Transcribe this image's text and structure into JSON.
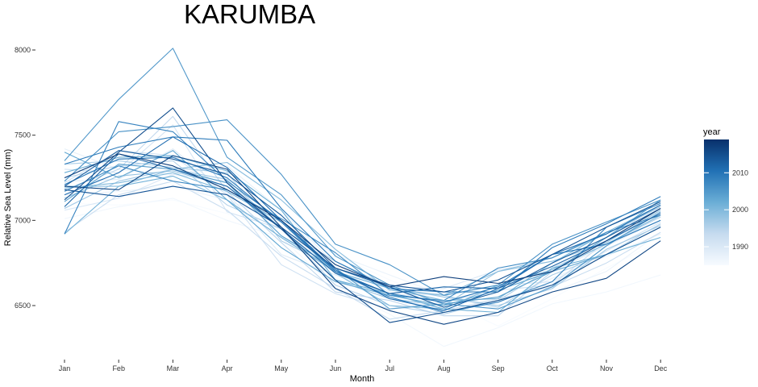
{
  "chart_data": {
    "type": "line",
    "title": "KARUMBA",
    "xlabel": "Month",
    "ylabel": "Relative Sea Level (mm)",
    "categories": [
      "Jan",
      "Feb",
      "Mar",
      "Apr",
      "May",
      "Jun",
      "Jul",
      "Aug",
      "Sep",
      "Oct",
      "Nov",
      "Dec"
    ],
    "yticks": [
      6500,
      7000,
      7500,
      8000
    ],
    "ylim": [
      6220,
      8080
    ],
    "grid": false,
    "legend": {
      "title": "year",
      "placement": "right",
      "type": "continuous",
      "range": [
        1985,
        2019
      ],
      "ticks": [
        1990,
        2000,
        2010
      ],
      "colors": [
        "#f7fbff",
        "#c6dbef",
        "#6baed6",
        "#2171b5",
        "#08306b"
      ]
    },
    "series": [
      {
        "year": 1985,
        "values": [
          7100,
          7090,
          7120,
          7040,
          6930,
          6800,
          6650,
          6530,
          6380,
          6540,
          6720,
          6880
        ]
      },
      {
        "year": 1986,
        "values": [
          7010,
          7080,
          7130,
          7000,
          6900,
          6600,
          6450,
          6260,
          6370,
          6510,
          6580,
          6680
        ]
      },
      {
        "year": 1987,
        "values": [
          7150,
          7170,
          7200,
          7120,
          6990,
          6800,
          6680,
          6560,
          6480,
          6580,
          6700,
          6930
        ]
      },
      {
        "year": 1988,
        "values": [
          7420,
          7300,
          7270,
          7320,
          7060,
          6740,
          6580,
          6520,
          6520,
          6660,
          6790,
          6920
        ]
      },
      {
        "year": 1989,
        "values": [
          7230,
          7240,
          7420,
          7160,
          6800,
          6680,
          6560,
          6570,
          6610,
          6700,
          6850,
          7000
        ]
      },
      {
        "year": 1990,
        "values": [
          7060,
          7130,
          7270,
          7230,
          6910,
          6690,
          6610,
          6600,
          6710,
          6760,
          6880,
          7020
        ]
      },
      {
        "year": 1991,
        "values": [
          7300,
          7280,
          7560,
          7050,
          6950,
          6700,
          6540,
          6480,
          6620,
          6640,
          6820,
          6990
        ]
      },
      {
        "year": 1992,
        "values": [
          7220,
          7410,
          7380,
          7150,
          6740,
          6570,
          6480,
          6520,
          6590,
          6620,
          6880,
          7050
        ]
      },
      {
        "year": 1993,
        "values": [
          6930,
          7150,
          7230,
          7060,
          6790,
          6600,
          6420,
          6470,
          6540,
          6610,
          6750,
          6930
        ]
      },
      {
        "year": 1994,
        "values": [
          7180,
          7300,
          7610,
          7170,
          6870,
          6580,
          6530,
          6440,
          6440,
          6700,
          6900,
          7090
        ]
      },
      {
        "year": 1995,
        "values": [
          7250,
          7320,
          7350,
          7090,
          6950,
          6620,
          6500,
          6450,
          6530,
          6720,
          6860,
          7020
        ]
      },
      {
        "year": 1996,
        "values": [
          7330,
          7350,
          7310,
          7280,
          6880,
          6720,
          6600,
          6560,
          6490,
          6680,
          6800,
          6980
        ]
      },
      {
        "year": 1997,
        "values": [
          7070,
          7230,
          7300,
          7240,
          6950,
          6760,
          6610,
          6550,
          6500,
          6600,
          6830,
          6970
        ]
      },
      {
        "year": 1998,
        "values": [
          7130,
          7260,
          7290,
          7200,
          6960,
          6650,
          6540,
          6500,
          6700,
          6780,
          6920,
          7080
        ]
      },
      {
        "year": 1999,
        "values": [
          7200,
          7200,
          7300,
          7340,
          7120,
          6830,
          6590,
          6560,
          6700,
          6760,
          6870,
          7060
        ]
      },
      {
        "year": 2000,
        "values": [
          7190,
          7220,
          7280,
          7170,
          6990,
          6690,
          6500,
          6480,
          6620,
          6710,
          6860,
          7030
        ]
      },
      {
        "year": 2001,
        "values": [
          6920,
          7200,
          7260,
          7120,
          6900,
          6700,
          6600,
          6530,
          6540,
          6750,
          6930,
          7090
        ]
      },
      {
        "year": 2002,
        "values": [
          7280,
          7370,
          7380,
          7290,
          7060,
          6650,
          6570,
          6480,
          6460,
          6720,
          6800,
          6900
        ]
      },
      {
        "year": 2003,
        "values": [
          7400,
          7250,
          7410,
          7120,
          6840,
          6640,
          6560,
          6500,
          6590,
          6700,
          6800,
          6960
        ]
      },
      {
        "year": 2004,
        "values": [
          7110,
          7330,
          7300,
          7220,
          6910,
          6720,
          6480,
          6510,
          6550,
          6700,
          6900,
          7120
        ]
      },
      {
        "year": 2005,
        "values": [
          7350,
          7710,
          8010,
          7370,
          7150,
          6790,
          6620,
          6510,
          6480,
          6610,
          6850,
          7050
        ]
      },
      {
        "year": 2006,
        "values": [
          7230,
          7520,
          7550,
          7590,
          7270,
          6860,
          6740,
          6560,
          6620,
          6860,
          6990,
          7120
        ]
      },
      {
        "year": 2007,
        "values": [
          7170,
          7320,
          7230,
          7180,
          7010,
          6810,
          6560,
          6530,
          6720,
          6780,
          6930,
          7030
        ]
      },
      {
        "year": 2008,
        "values": [
          6920,
          7580,
          7520,
          7230,
          7000,
          6700,
          6550,
          6460,
          6520,
          6640,
          6960,
          7100
        ]
      },
      {
        "year": 2009,
        "values": [
          7330,
          7430,
          7490,
          7470,
          7070,
          6760,
          6600,
          6580,
          6580,
          6840,
          6980,
          7140
        ]
      },
      {
        "year": 2010,
        "values": [
          7210,
          7360,
          7370,
          7250,
          6990,
          6700,
          6570,
          6520,
          6610,
          6800,
          6860,
          7000
        ]
      },
      {
        "year": 2011,
        "values": [
          7150,
          7280,
          7490,
          7310,
          7000,
          6710,
          6540,
          6470,
          6600,
          6800,
          6920,
          7090
        ]
      },
      {
        "year": 2012,
        "values": [
          7080,
          7390,
          7300,
          7200,
          6950,
          6690,
          6570,
          6610,
          6600,
          6730,
          6880,
          7040
        ]
      },
      {
        "year": 2013,
        "values": [
          7200,
          7410,
          7360,
          7270,
          7030,
          6720,
          6610,
          6490,
          6580,
          6750,
          6900,
          7070
        ]
      },
      {
        "year": 2014,
        "values": [
          7180,
          7140,
          7200,
          7150,
          6960,
          6720,
          6620,
          6580,
          6650,
          6800,
          6960,
          7110
        ]
      },
      {
        "year": 2015,
        "values": [
          7120,
          7400,
          7660,
          7220,
          6950,
          6650,
          6400,
          6460,
          6530,
          6620,
          6800,
          6960
        ]
      },
      {
        "year": 2016,
        "values": [
          7200,
          7180,
          7380,
          7300,
          6960,
          6600,
          6470,
          6390,
          6460,
          6580,
          6660,
          6880
        ]
      },
      {
        "year": 2017,
        "values": [
          7250,
          7390,
          7320,
          7180,
          7000,
          6740,
          6610,
          6670,
          6630,
          6700,
          6880,
          7070
        ]
      }
    ]
  }
}
